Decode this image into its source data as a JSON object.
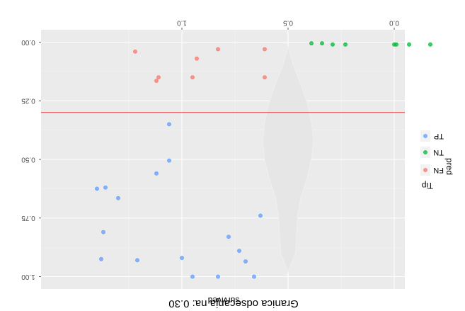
{
  "chart_data": {
    "type": "scatter",
    "orientation_note_flipped": true,
    "title": "Granica odsecanja na: 0.30",
    "xlabel": "survived",
    "ylabel": "pred",
    "x_ticks": [
      "0.0",
      "0.5",
      "1.0"
    ],
    "x_tick_values": [
      0.0,
      0.5,
      1.0
    ],
    "y_ticks": [
      "0.00",
      "0.25",
      "0.50",
      "0.75",
      "1.00"
    ],
    "y_tick_values": [
      0.0,
      0.25,
      0.5,
      0.75,
      1.0
    ],
    "xlim": [
      -0.25,
      1.47
    ],
    "ylim": [
      -0.05,
      1.06
    ],
    "threshold": 0.3,
    "legend": {
      "title": "Tip",
      "entries": [
        {
          "label": "FN",
          "color": "#F8766D"
        },
        {
          "label": "TN",
          "color": "#00BA38"
        },
        {
          "label": "TP",
          "color": "#619CFF"
        }
      ]
    },
    "series": [
      {
        "name": "FN",
        "color": "#F8766D",
        "points": [
          [
            0.61,
            0.03
          ],
          [
            0.83,
            0.03
          ],
          [
            1.22,
            0.04
          ],
          [
            0.93,
            0.07
          ],
          [
            0.61,
            0.15
          ],
          [
            0.95,
            0.15
          ],
          [
            1.11,
            0.15
          ],
          [
            1.12,
            0.165
          ]
        ]
      },
      {
        "name": "TN",
        "color": "#00BA38",
        "points": [
          [
            -0.17,
            0.01
          ],
          [
            -0.07,
            0.01
          ],
          [
            -0.01,
            0.01
          ],
          [
            0.0,
            0.01
          ],
          [
            0.23,
            0.01
          ],
          [
            0.29,
            0.01
          ],
          [
            0.34,
            0.005
          ],
          [
            0.39,
            0.005
          ]
        ]
      },
      {
        "name": "TP",
        "color": "#619CFF",
        "points": [
          [
            1.06,
            0.35
          ],
          [
            1.06,
            0.505
          ],
          [
            1.12,
            0.56
          ],
          [
            1.36,
            0.62
          ],
          [
            1.4,
            0.625
          ],
          [
            1.3,
            0.665
          ],
          [
            0.63,
            0.74
          ],
          [
            1.37,
            0.81
          ],
          [
            0.78,
            0.83
          ],
          [
            0.73,
            0.89
          ],
          [
            1.0,
            0.92
          ],
          [
            1.21,
            0.93
          ],
          [
            1.38,
            0.925
          ],
          [
            0.7,
            0.935
          ],
          [
            0.66,
            1.0
          ],
          [
            0.83,
            1.0
          ],
          [
            0.95,
            1.0
          ]
        ]
      }
    ],
    "violin_shape": [
      [
        0.02,
        0.0
      ],
      [
        0.1,
        0.025
      ],
      [
        0.18,
        0.06
      ],
      [
        0.26,
        0.09
      ],
      [
        0.34,
        0.11
      ],
      [
        0.42,
        0.12
      ],
      [
        0.5,
        0.11
      ],
      [
        0.58,
        0.09
      ],
      [
        0.66,
        0.06
      ],
      [
        0.74,
        0.045
      ],
      [
        0.82,
        0.04
      ],
      [
        0.9,
        0.035
      ],
      [
        0.98,
        0.0
      ]
    ]
  }
}
